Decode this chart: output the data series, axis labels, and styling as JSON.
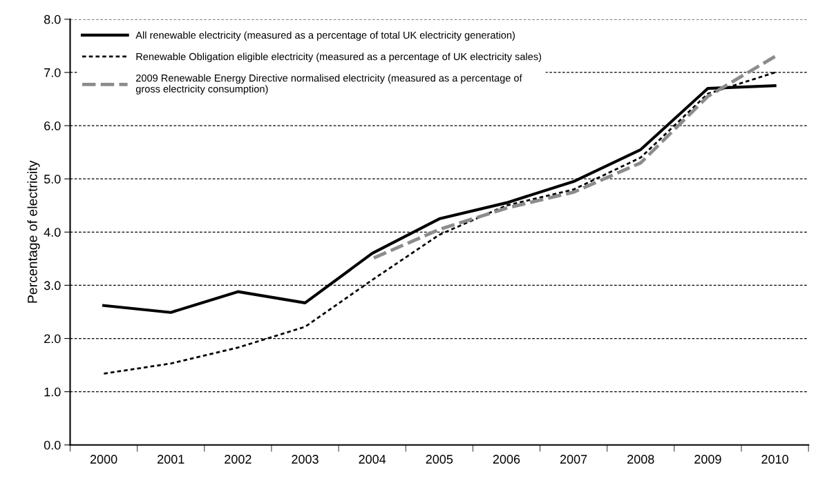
{
  "chart_data": {
    "type": "line",
    "ylabel": "Percentage of electricity",
    "categories": [
      "2000",
      "2001",
      "2002",
      "2003",
      "2004",
      "2005",
      "2006",
      "2007",
      "2008",
      "2009",
      "2010"
    ],
    "series": [
      {
        "name": "All renewable electricity (measured as a percentage of total UK electricity generation)",
        "color": "#000000",
        "line_style": "solid",
        "values": [
          2.62,
          2.49,
          2.88,
          2.67,
          3.6,
          4.25,
          4.55,
          4.95,
          5.55,
          6.7,
          6.75
        ]
      },
      {
        "name": "Renewable Obligation eligible electricity (measured as a percentage of UK electricity sales)",
        "color": "#000000",
        "line_style": "dotted",
        "values": [
          1.34,
          1.53,
          1.83,
          2.22,
          3.1,
          3.95,
          4.5,
          4.8,
          5.4,
          6.6,
          7.0
        ]
      },
      {
        "name": "2009 Renewable Energy Directive normalised electricity (measured as a percentage of\ngross electricity consumption)",
        "color": "#8c8c8c",
        "line_style": "dashed",
        "values": [
          null,
          null,
          null,
          null,
          3.5,
          4.05,
          4.45,
          4.75,
          5.3,
          6.55,
          7.3
        ]
      }
    ],
    "ylim": [
      0,
      8
    ],
    "yticks": [
      {
        "value": 0,
        "label": "0.0"
      },
      {
        "value": 1,
        "label": "1.0"
      },
      {
        "value": 2,
        "label": "2.0"
      },
      {
        "value": 3,
        "label": "3.0"
      },
      {
        "value": 4,
        "label": "4.0"
      },
      {
        "value": 5,
        "label": "5.0"
      },
      {
        "value": 6,
        "label": "6.0"
      },
      {
        "value": 7,
        "label": "7.0"
      },
      {
        "value": 8,
        "label": "8.0"
      }
    ],
    "grid": "y",
    "legend": "top left",
    "marker": "none"
  }
}
